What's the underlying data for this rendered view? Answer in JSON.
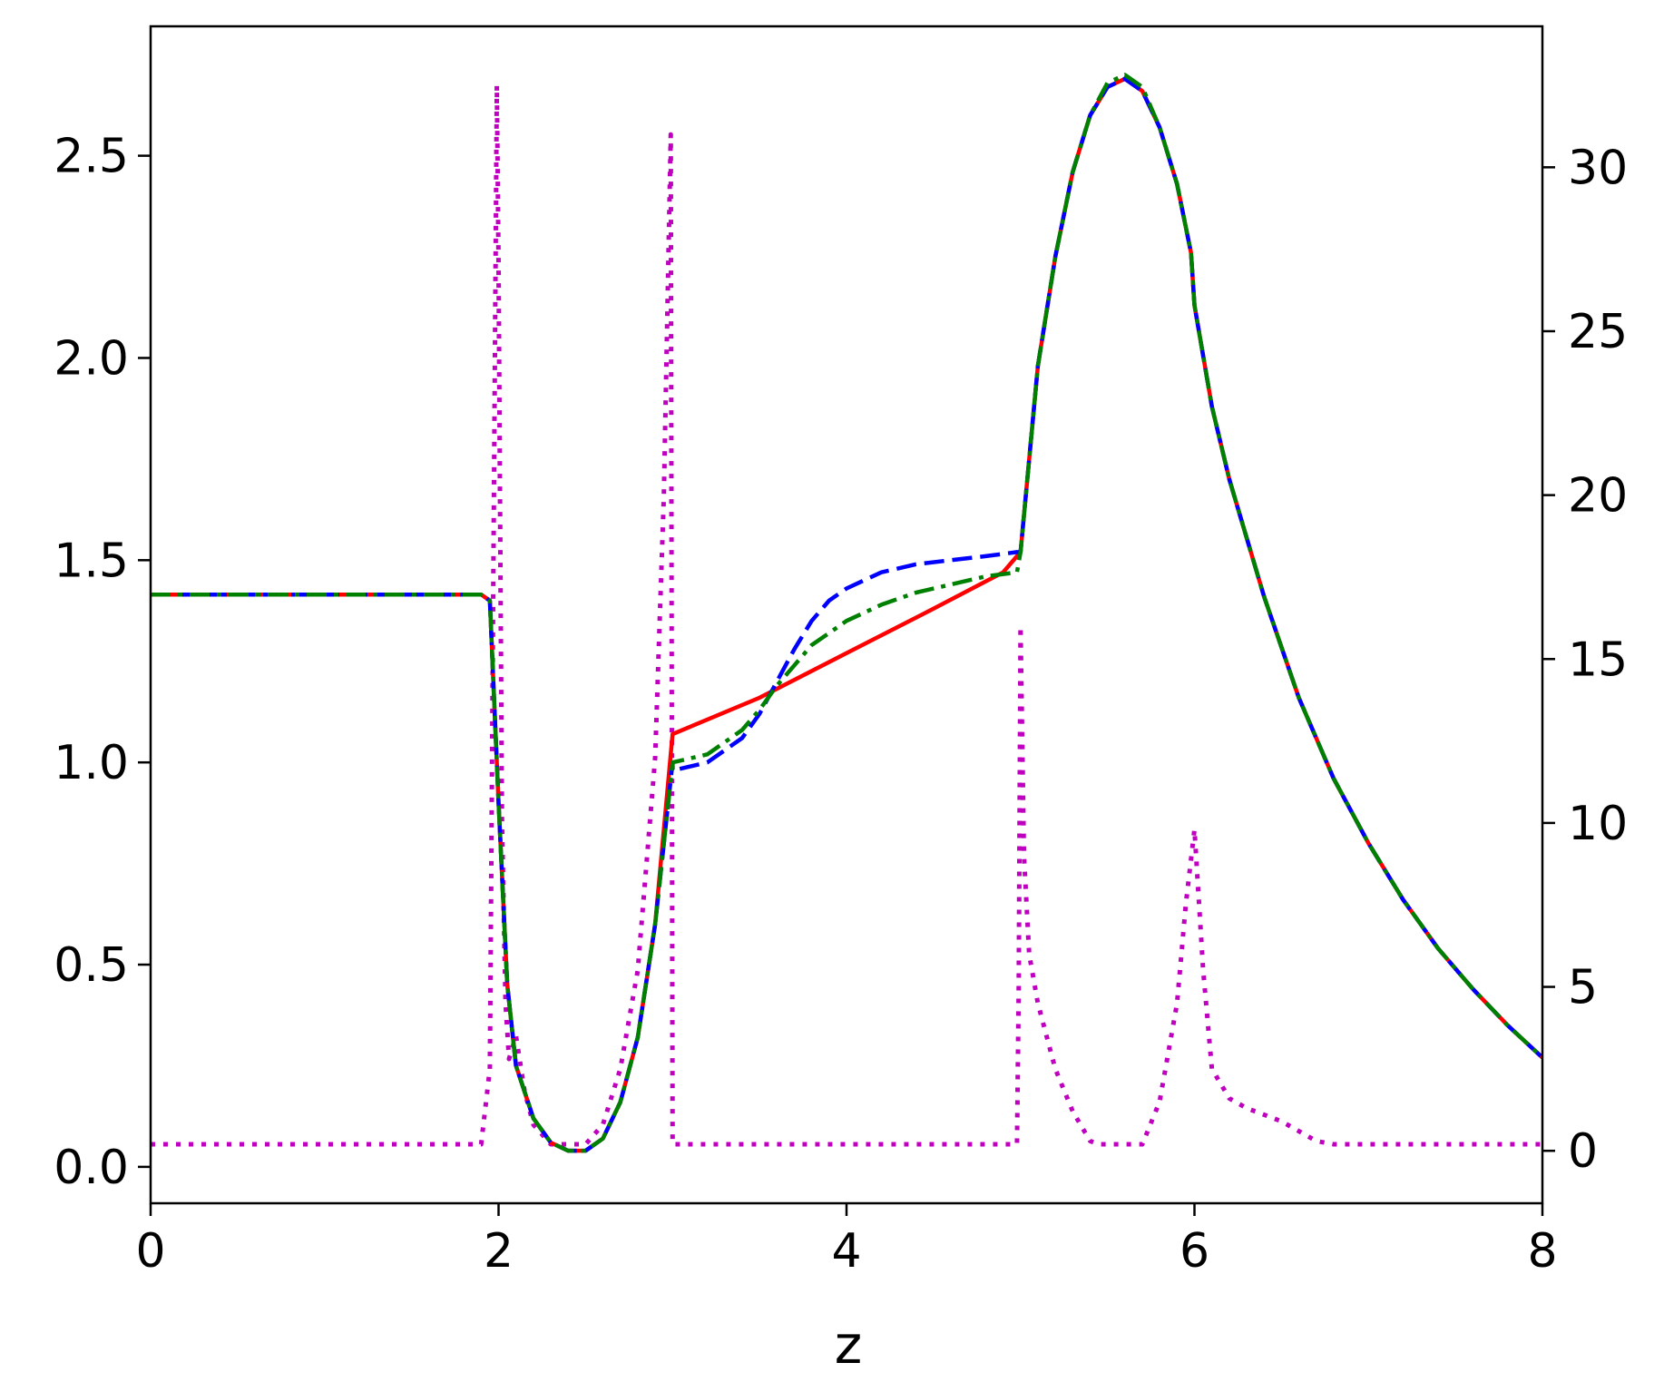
{
  "chart_data": {
    "type": "line",
    "xlabel": "z",
    "ylabel": "",
    "y2label": "",
    "xlim": [
      0,
      8
    ],
    "ylim": [
      -0.09,
      2.82
    ],
    "y2lim": [
      -1.6,
      34.3
    ],
    "x_ticks": [
      "0",
      "2",
      "4",
      "6",
      "8"
    ],
    "y_ticks": [
      "0.0",
      "0.5",
      "1.0",
      "1.5",
      "2.0",
      "2.5"
    ],
    "y2_ticks": [
      "0",
      "5",
      "10",
      "15",
      "20",
      "25",
      "30"
    ],
    "grid": false,
    "legend": "none",
    "series": [
      {
        "axis": "left",
        "color": "#ff0000",
        "style": "solid",
        "x": [
          0,
          1.0,
          1.9,
          1.95,
          2.0,
          2.05,
          2.1,
          2.2,
          2.3,
          2.4,
          2.45,
          2.5,
          2.6,
          2.7,
          2.8,
          2.9,
          3.0,
          3.0001,
          3.5,
          4.0,
          4.5,
          4.9,
          4.98,
          5.0,
          5.1,
          5.2,
          5.3,
          5.4,
          5.5,
          5.6,
          5.7,
          5.8,
          5.9,
          5.98,
          6.0,
          6.1,
          6.2,
          6.4,
          6.6,
          6.8,
          7.0,
          7.2,
          7.4,
          7.6,
          7.8,
          8.0
        ],
        "y": [
          1.415,
          1.415,
          1.415,
          1.4,
          0.9,
          0.45,
          0.25,
          0.12,
          0.06,
          0.04,
          0.04,
          0.04,
          0.07,
          0.16,
          0.32,
          0.6,
          1.07,
          1.07,
          1.16,
          1.27,
          1.38,
          1.47,
          1.51,
          1.52,
          1.98,
          2.25,
          2.46,
          2.6,
          2.67,
          2.69,
          2.66,
          2.57,
          2.43,
          2.26,
          2.13,
          1.88,
          1.7,
          1.41,
          1.16,
          0.96,
          0.8,
          0.66,
          0.54,
          0.44,
          0.35,
          0.27
        ]
      },
      {
        "axis": "left",
        "color": "#0000ff",
        "style": "dashed",
        "x": [
          0,
          1.0,
          1.9,
          1.95,
          2.0,
          2.05,
          2.1,
          2.2,
          2.3,
          2.4,
          2.45,
          2.5,
          2.6,
          2.7,
          2.8,
          2.9,
          3.0,
          3.0001,
          3.2,
          3.4,
          3.5,
          3.6,
          3.7,
          3.8,
          3.9,
          4.0,
          4.2,
          4.4,
          4.6,
          4.8,
          4.98,
          5.0,
          5.1,
          5.2,
          5.3,
          5.4,
          5.5,
          5.6,
          5.7,
          5.8,
          5.9,
          5.98,
          6.0,
          6.1,
          6.2,
          6.4,
          6.6,
          6.8,
          7.0,
          7.2,
          7.4,
          7.6,
          7.8,
          8.0
        ],
        "y": [
          1.415,
          1.415,
          1.415,
          1.4,
          0.9,
          0.45,
          0.25,
          0.12,
          0.06,
          0.04,
          0.04,
          0.04,
          0.07,
          0.16,
          0.32,
          0.6,
          1.0,
          0.98,
          1.0,
          1.06,
          1.12,
          1.2,
          1.28,
          1.35,
          1.4,
          1.43,
          1.47,
          1.49,
          1.5,
          1.51,
          1.52,
          1.52,
          1.98,
          2.25,
          2.46,
          2.6,
          2.67,
          2.69,
          2.66,
          2.57,
          2.43,
          2.26,
          2.13,
          1.88,
          1.7,
          1.41,
          1.16,
          0.96,
          0.8,
          0.66,
          0.54,
          0.44,
          0.35,
          0.27
        ]
      },
      {
        "axis": "left",
        "color": "#008000",
        "style": "dashdot",
        "x": [
          0,
          1.0,
          1.9,
          1.95,
          2.0,
          2.05,
          2.1,
          2.2,
          2.3,
          2.4,
          2.45,
          2.5,
          2.6,
          2.7,
          2.8,
          2.9,
          3.0,
          3.0001,
          3.2,
          3.4,
          3.5,
          3.6,
          3.7,
          3.8,
          3.9,
          4.0,
          4.2,
          4.4,
          4.6,
          4.8,
          4.98,
          5.0,
          5.1,
          5.2,
          5.3,
          5.4,
          5.5,
          5.6,
          5.7,
          5.8,
          5.9,
          5.98,
          6.0,
          6.1,
          6.2,
          6.4,
          6.6,
          6.8,
          7.0,
          7.2,
          7.4,
          7.6,
          7.8,
          8.0
        ],
        "y": [
          1.415,
          1.415,
          1.415,
          1.4,
          0.9,
          0.45,
          0.25,
          0.12,
          0.06,
          0.04,
          0.04,
          0.04,
          0.07,
          0.16,
          0.32,
          0.6,
          1.0,
          1.0,
          1.02,
          1.08,
          1.13,
          1.19,
          1.24,
          1.29,
          1.32,
          1.35,
          1.39,
          1.42,
          1.44,
          1.46,
          1.47,
          1.52,
          1.98,
          2.25,
          2.46,
          2.6,
          2.68,
          2.7,
          2.67,
          2.57,
          2.43,
          2.26,
          2.13,
          1.88,
          1.7,
          1.41,
          1.16,
          0.96,
          0.8,
          0.66,
          0.54,
          0.44,
          0.35,
          0.27
        ]
      },
      {
        "axis": "right",
        "color": "#bf00bf",
        "style": "dotted",
        "x": [
          0,
          1.9,
          1.95,
          1.99,
          2.0,
          2.02,
          2.04,
          2.06,
          2.1,
          2.15,
          2.2,
          2.3,
          2.4,
          2.5,
          2.6,
          2.7,
          2.8,
          2.9,
          2.95,
          2.99,
          3.0,
          3.01,
          3.5,
          4.0,
          4.5,
          4.98,
          4.99,
          5.0,
          5.02,
          5.05,
          5.1,
          5.2,
          5.3,
          5.4,
          5.45,
          5.5,
          5.6,
          5.7,
          5.8,
          5.9,
          5.95,
          6.0,
          6.05,
          6.1,
          6.2,
          6.3,
          6.5,
          6.7,
          6.8,
          7.0,
          8.0
        ],
        "y": [
          0.2,
          0.2,
          2.5,
          32.5,
          27.0,
          10.0,
          4.5,
          2.8,
          3.5,
          1.8,
          0.8,
          0.2,
          0.2,
          0.2,
          0.8,
          2.5,
          5.5,
          12.0,
          20.0,
          31.0,
          0.2,
          0.2,
          0.2,
          0.2,
          0.2,
          0.2,
          5.0,
          16.0,
          9.0,
          6.0,
          4.5,
          2.5,
          1.2,
          0.3,
          0.2,
          0.2,
          0.2,
          0.2,
          1.5,
          4.5,
          7.5,
          9.8,
          5.5,
          2.5,
          1.6,
          1.3,
          0.9,
          0.3,
          0.2,
          0.2,
          0.2
        ]
      }
    ]
  }
}
